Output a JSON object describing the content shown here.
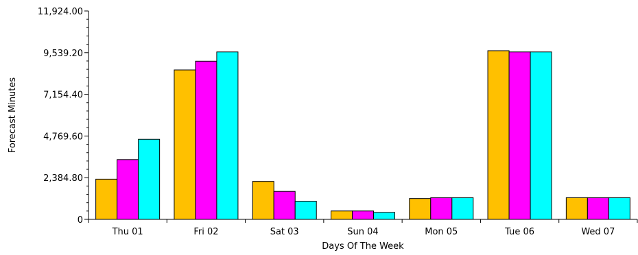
{
  "chart_data": {
    "type": "bar",
    "title": "",
    "xlabel": "Days Of The Week",
    "ylabel": "Forecast Minutes",
    "ylim": [
      0,
      11924.0
    ],
    "yticks": [
      0,
      2384.8,
      4769.6,
      7154.4,
      9539.2,
      11924.0
    ],
    "ytick_labels": [
      "0",
      "2,384.80",
      "4,769.60",
      "7,154.40",
      "9,539.20",
      "11,924.00"
    ],
    "categories": [
      "Thu 01",
      "Fri 02",
      "Sat 03",
      "Sun 04",
      "Mon 05",
      "Tue 06",
      "Wed 07"
    ],
    "grid": false,
    "legend": "none",
    "series": [
      {
        "color": "#FFC000",
        "values": [
          2300,
          8550,
          2170,
          480,
          1190,
          9650,
          1240
        ]
      },
      {
        "color": "#FF00FF",
        "values": [
          3420,
          9050,
          1600,
          480,
          1240,
          9580,
          1240
        ]
      },
      {
        "color": "#00FFFF",
        "values": [
          4580,
          9580,
          1040,
          400,
          1240,
          9580,
          1240
        ]
      }
    ]
  }
}
